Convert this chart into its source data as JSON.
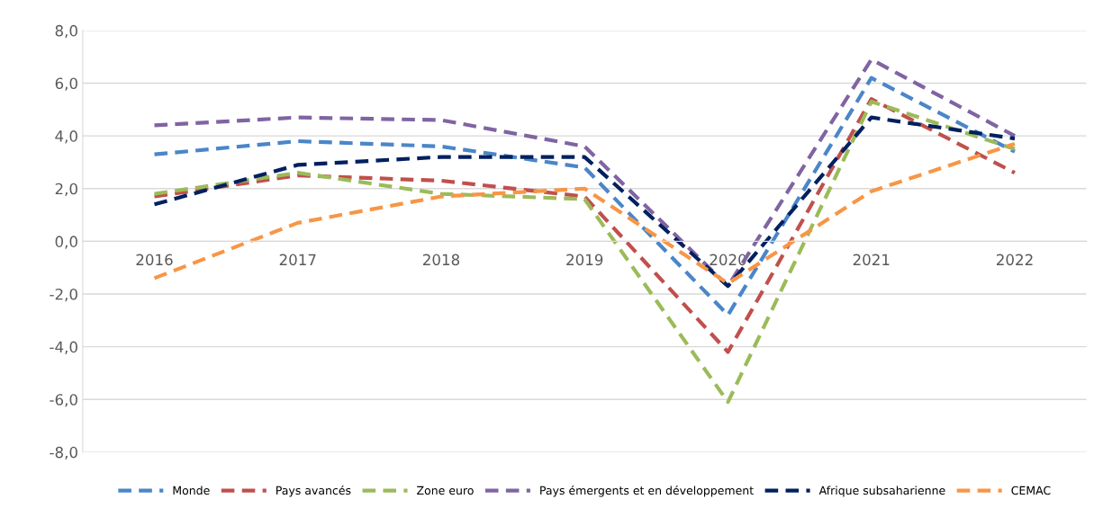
{
  "chart_data": {
    "type": "line",
    "categories": [
      "2016",
      "2017",
      "2018",
      "2019",
      "2020",
      "2021",
      "2022"
    ],
    "series": [
      {
        "name": "Monde",
        "color": "#4a86c8",
        "values": [
          3.3,
          3.8,
          3.6,
          2.8,
          -2.8,
          6.2,
          3.4
        ]
      },
      {
        "name": "Pays avancés",
        "color": "#c0504d",
        "values": [
          1.7,
          2.5,
          2.3,
          1.7,
          -4.2,
          5.4,
          2.6
        ]
      },
      {
        "name": "Zone euro",
        "color": "#9bbb59",
        "values": [
          1.8,
          2.6,
          1.8,
          1.6,
          -6.1,
          5.3,
          3.5
        ]
      },
      {
        "name": "Pays émergents et en développement",
        "color": "#8064a2",
        "values": [
          4.4,
          4.7,
          4.6,
          3.6,
          -1.7,
          6.9,
          4.0
        ]
      },
      {
        "name": "Afrique subsaharienne",
        "color": "#002060",
        "values": [
          1.4,
          2.9,
          3.2,
          3.2,
          -1.7,
          4.7,
          3.9
        ]
      },
      {
        "name": "CEMAC",
        "color": "#f79646",
        "values": [
          -1.4,
          0.7,
          1.7,
          2.0,
          -1.6,
          1.9,
          3.7
        ]
      }
    ],
    "ylim": [
      -8,
      8
    ],
    "yticks": [
      {
        "value": -8,
        "label": "-8,0"
      },
      {
        "value": -6,
        "label": "-6,0"
      },
      {
        "value": -4,
        "label": "-4,0"
      },
      {
        "value": -2,
        "label": "-2,0"
      },
      {
        "value": 0,
        "label": "0,0"
      },
      {
        "value": 2,
        "label": "2,0"
      },
      {
        "value": 4,
        "label": "4,0"
      },
      {
        "value": 6,
        "label": "6,0"
      },
      {
        "value": 8,
        "label": "8,0"
      }
    ],
    "grid": "y",
    "legend": "bottom",
    "line_style": "dashed",
    "marker": "none"
  }
}
